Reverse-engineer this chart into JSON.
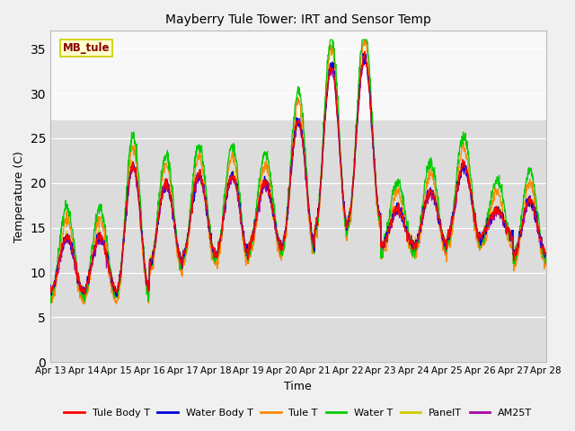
{
  "title": "Mayberry Tule Tower: IRT and Sensor Temp",
  "xlabel": "Time",
  "ylabel": "Temperature (C)",
  "ylim": [
    0,
    37
  ],
  "yticks": [
    0,
    5,
    10,
    15,
    20,
    25,
    30,
    35
  ],
  "x_tick_labels": [
    "Apr 13",
    "Apr 14",
    "Apr 15",
    "Apr 16",
    "Apr 17",
    "Apr 18",
    "Apr 19",
    "Apr 20",
    "Apr 21",
    "Apr 22",
    "Apr 23",
    "Apr 24",
    "Apr 25",
    "Apr 26",
    "Apr 27",
    "Apr 28"
  ],
  "fig_bg": "#f0f0f0",
  "plot_bg_lower": "#dcdcdc",
  "plot_bg_upper": "#f8f8f8",
  "legend_label": "MB_tule",
  "legend_fg": "#880000",
  "legend_bg": "#ffffcc",
  "legend_border": "#cccc00",
  "series_colors": {
    "Tule Body T": "#ff0000",
    "Water Body T": "#0000dd",
    "Tule T": "#ff8800",
    "Water T": "#00cc00",
    "PanelT": "#cccc00",
    "AM25T": "#aa00aa"
  },
  "series_names": [
    "Tule Body T",
    "Water Body T",
    "Tule T",
    "Water T",
    "PanelT",
    "AM25T"
  ],
  "n_days": 15,
  "pts_per_day": 96,
  "day_peaks_base": [
    14,
    14,
    22,
    20,
    21,
    21,
    20,
    27,
    33,
    34,
    17,
    19,
    22,
    17,
    18
  ],
  "day_troughs_base": [
    8,
    8,
    8,
    11,
    12,
    12,
    13,
    13,
    15,
    16,
    13,
    13,
    14,
    14,
    12
  ],
  "water_peak_boost": 2.5,
  "tule_T_day_boost": 2.0,
  "orange_trough_drop": 2.0
}
